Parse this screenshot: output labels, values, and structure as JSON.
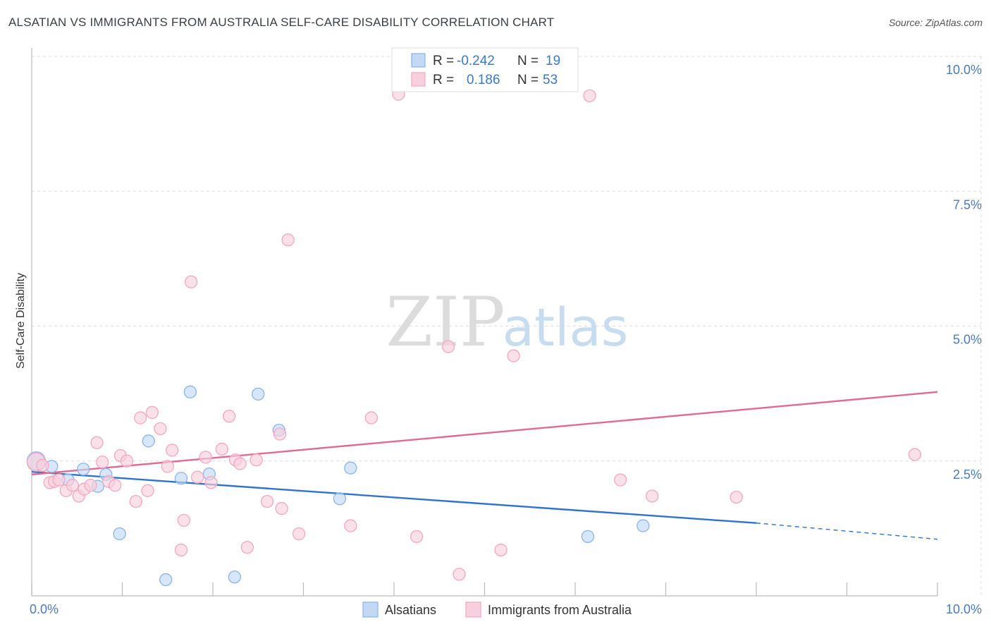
{
  "title": "ALSATIAN VS IMMIGRANTS FROM AUSTRALIA SELF-CARE DISABILITY CORRELATION CHART",
  "source": "Source: ZipAtlas.com",
  "watermark": {
    "zip": "ZIP",
    "atlas": "atlas"
  },
  "chart_data": {
    "type": "scatter",
    "ylabel": "Self-Care Disability",
    "xlim": [
      0,
      10
    ],
    "ylim": [
      0,
      10
    ],
    "x_ticks": [
      {
        "value": 0,
        "label": "0.0%"
      },
      {
        "value": 10,
        "label": "10.0%"
      }
    ],
    "y_ticks": [
      {
        "value": 2.5,
        "label": "2.5%"
      },
      {
        "value": 5.0,
        "label": "5.0%"
      },
      {
        "value": 7.5,
        "label": "7.5%"
      },
      {
        "value": 10.0,
        "label": "10.0%"
      }
    ],
    "grid": true,
    "legend": {
      "placement": "top-center",
      "rows": [
        {
          "r_label": "R =",
          "r_value": "-0.242",
          "n_label": "N =",
          "n_value": "19"
        },
        {
          "r_label": "R =",
          "r_value": "0.186",
          "n_label": "N =",
          "n_value": "53"
        }
      ]
    },
    "series": [
      {
        "name": "Alsatians",
        "color": "#8db4e8",
        "fill": "#c2d8f4",
        "line_color": "#2f72d0",
        "trend": {
          "x0": 0.0,
          "y0": 2.3,
          "x1": 8.0,
          "y1": 1.35,
          "dash_to_x": 10.0,
          "dash_to_y": 1.05
        },
        "points": [
          {
            "x": 0.05,
            "y": 2.5
          },
          {
            "x": 0.22,
            "y": 2.4
          },
          {
            "x": 0.4,
            "y": 2.15
          },
          {
            "x": 0.57,
            "y": 2.35
          },
          {
            "x": 0.73,
            "y": 2.03
          },
          {
            "x": 0.82,
            "y": 2.25
          },
          {
            "x": 0.97,
            "y": 1.15
          },
          {
            "x": 1.29,
            "y": 2.87
          },
          {
            "x": 1.48,
            "y": 0.3
          },
          {
            "x": 1.65,
            "y": 2.18
          },
          {
            "x": 1.75,
            "y": 3.78
          },
          {
            "x": 1.96,
            "y": 2.26
          },
          {
            "x": 2.24,
            "y": 0.35
          },
          {
            "x": 2.5,
            "y": 3.74
          },
          {
            "x": 2.73,
            "y": 3.07
          },
          {
            "x": 3.4,
            "y": 1.8
          },
          {
            "x": 3.52,
            "y": 2.37
          },
          {
            "x": 6.14,
            "y": 1.1
          },
          {
            "x": 6.75,
            "y": 1.3
          }
        ]
      },
      {
        "name": "Immigrants from Australia",
        "color": "#f2a8c0",
        "fill": "#f8cfdc",
        "line_color": "#e06a94",
        "trend": {
          "x0": 0.0,
          "y0": 2.25,
          "x1": 10.0,
          "y1": 3.78
        },
        "points": [
          {
            "x": 0.05,
            "y": 2.48
          },
          {
            "x": 0.12,
            "y": 2.42
          },
          {
            "x": 0.2,
            "y": 2.1
          },
          {
            "x": 0.25,
            "y": 2.12
          },
          {
            "x": 0.3,
            "y": 2.15
          },
          {
            "x": 0.38,
            "y": 1.95
          },
          {
            "x": 0.45,
            "y": 2.05
          },
          {
            "x": 0.52,
            "y": 1.85
          },
          {
            "x": 0.58,
            "y": 1.98
          },
          {
            "x": 0.65,
            "y": 2.05
          },
          {
            "x": 0.72,
            "y": 2.84
          },
          {
            "x": 0.78,
            "y": 2.48
          },
          {
            "x": 0.85,
            "y": 2.12
          },
          {
            "x": 0.92,
            "y": 2.05
          },
          {
            "x": 0.98,
            "y": 2.6
          },
          {
            "x": 1.05,
            "y": 2.5
          },
          {
            "x": 1.15,
            "y": 1.75
          },
          {
            "x": 1.2,
            "y": 3.3
          },
          {
            "x": 1.28,
            "y": 1.95
          },
          {
            "x": 1.33,
            "y": 3.4
          },
          {
            "x": 1.42,
            "y": 3.1
          },
          {
            "x": 1.5,
            "y": 2.4
          },
          {
            "x": 1.55,
            "y": 2.7
          },
          {
            "x": 1.65,
            "y": 0.85
          },
          {
            "x": 1.68,
            "y": 1.4
          },
          {
            "x": 1.76,
            "y": 5.82
          },
          {
            "x": 1.83,
            "y": 2.2
          },
          {
            "x": 1.92,
            "y": 2.57
          },
          {
            "x": 1.98,
            "y": 2.1
          },
          {
            "x": 2.1,
            "y": 2.72
          },
          {
            "x": 2.18,
            "y": 3.33
          },
          {
            "x": 2.25,
            "y": 2.52
          },
          {
            "x": 2.3,
            "y": 2.45
          },
          {
            "x": 2.38,
            "y": 0.9
          },
          {
            "x": 2.48,
            "y": 2.52
          },
          {
            "x": 2.6,
            "y": 1.75
          },
          {
            "x": 2.74,
            "y": 3.0
          },
          {
            "x": 2.76,
            "y": 1.62
          },
          {
            "x": 2.83,
            "y": 6.6
          },
          {
            "x": 2.95,
            "y": 1.15
          },
          {
            "x": 3.52,
            "y": 1.3
          },
          {
            "x": 3.75,
            "y": 3.3
          },
          {
            "x": 4.05,
            "y": 9.3
          },
          {
            "x": 4.25,
            "y": 1.1
          },
          {
            "x": 4.6,
            "y": 4.62
          },
          {
            "x": 4.72,
            "y": 0.4
          },
          {
            "x": 5.18,
            "y": 0.85
          },
          {
            "x": 5.32,
            "y": 4.45
          },
          {
            "x": 6.16,
            "y": 9.27
          },
          {
            "x": 6.5,
            "y": 2.15
          },
          {
            "x": 6.85,
            "y": 1.85
          },
          {
            "x": 7.78,
            "y": 1.83
          },
          {
            "x": 9.75,
            "y": 2.62
          }
        ]
      }
    ]
  }
}
